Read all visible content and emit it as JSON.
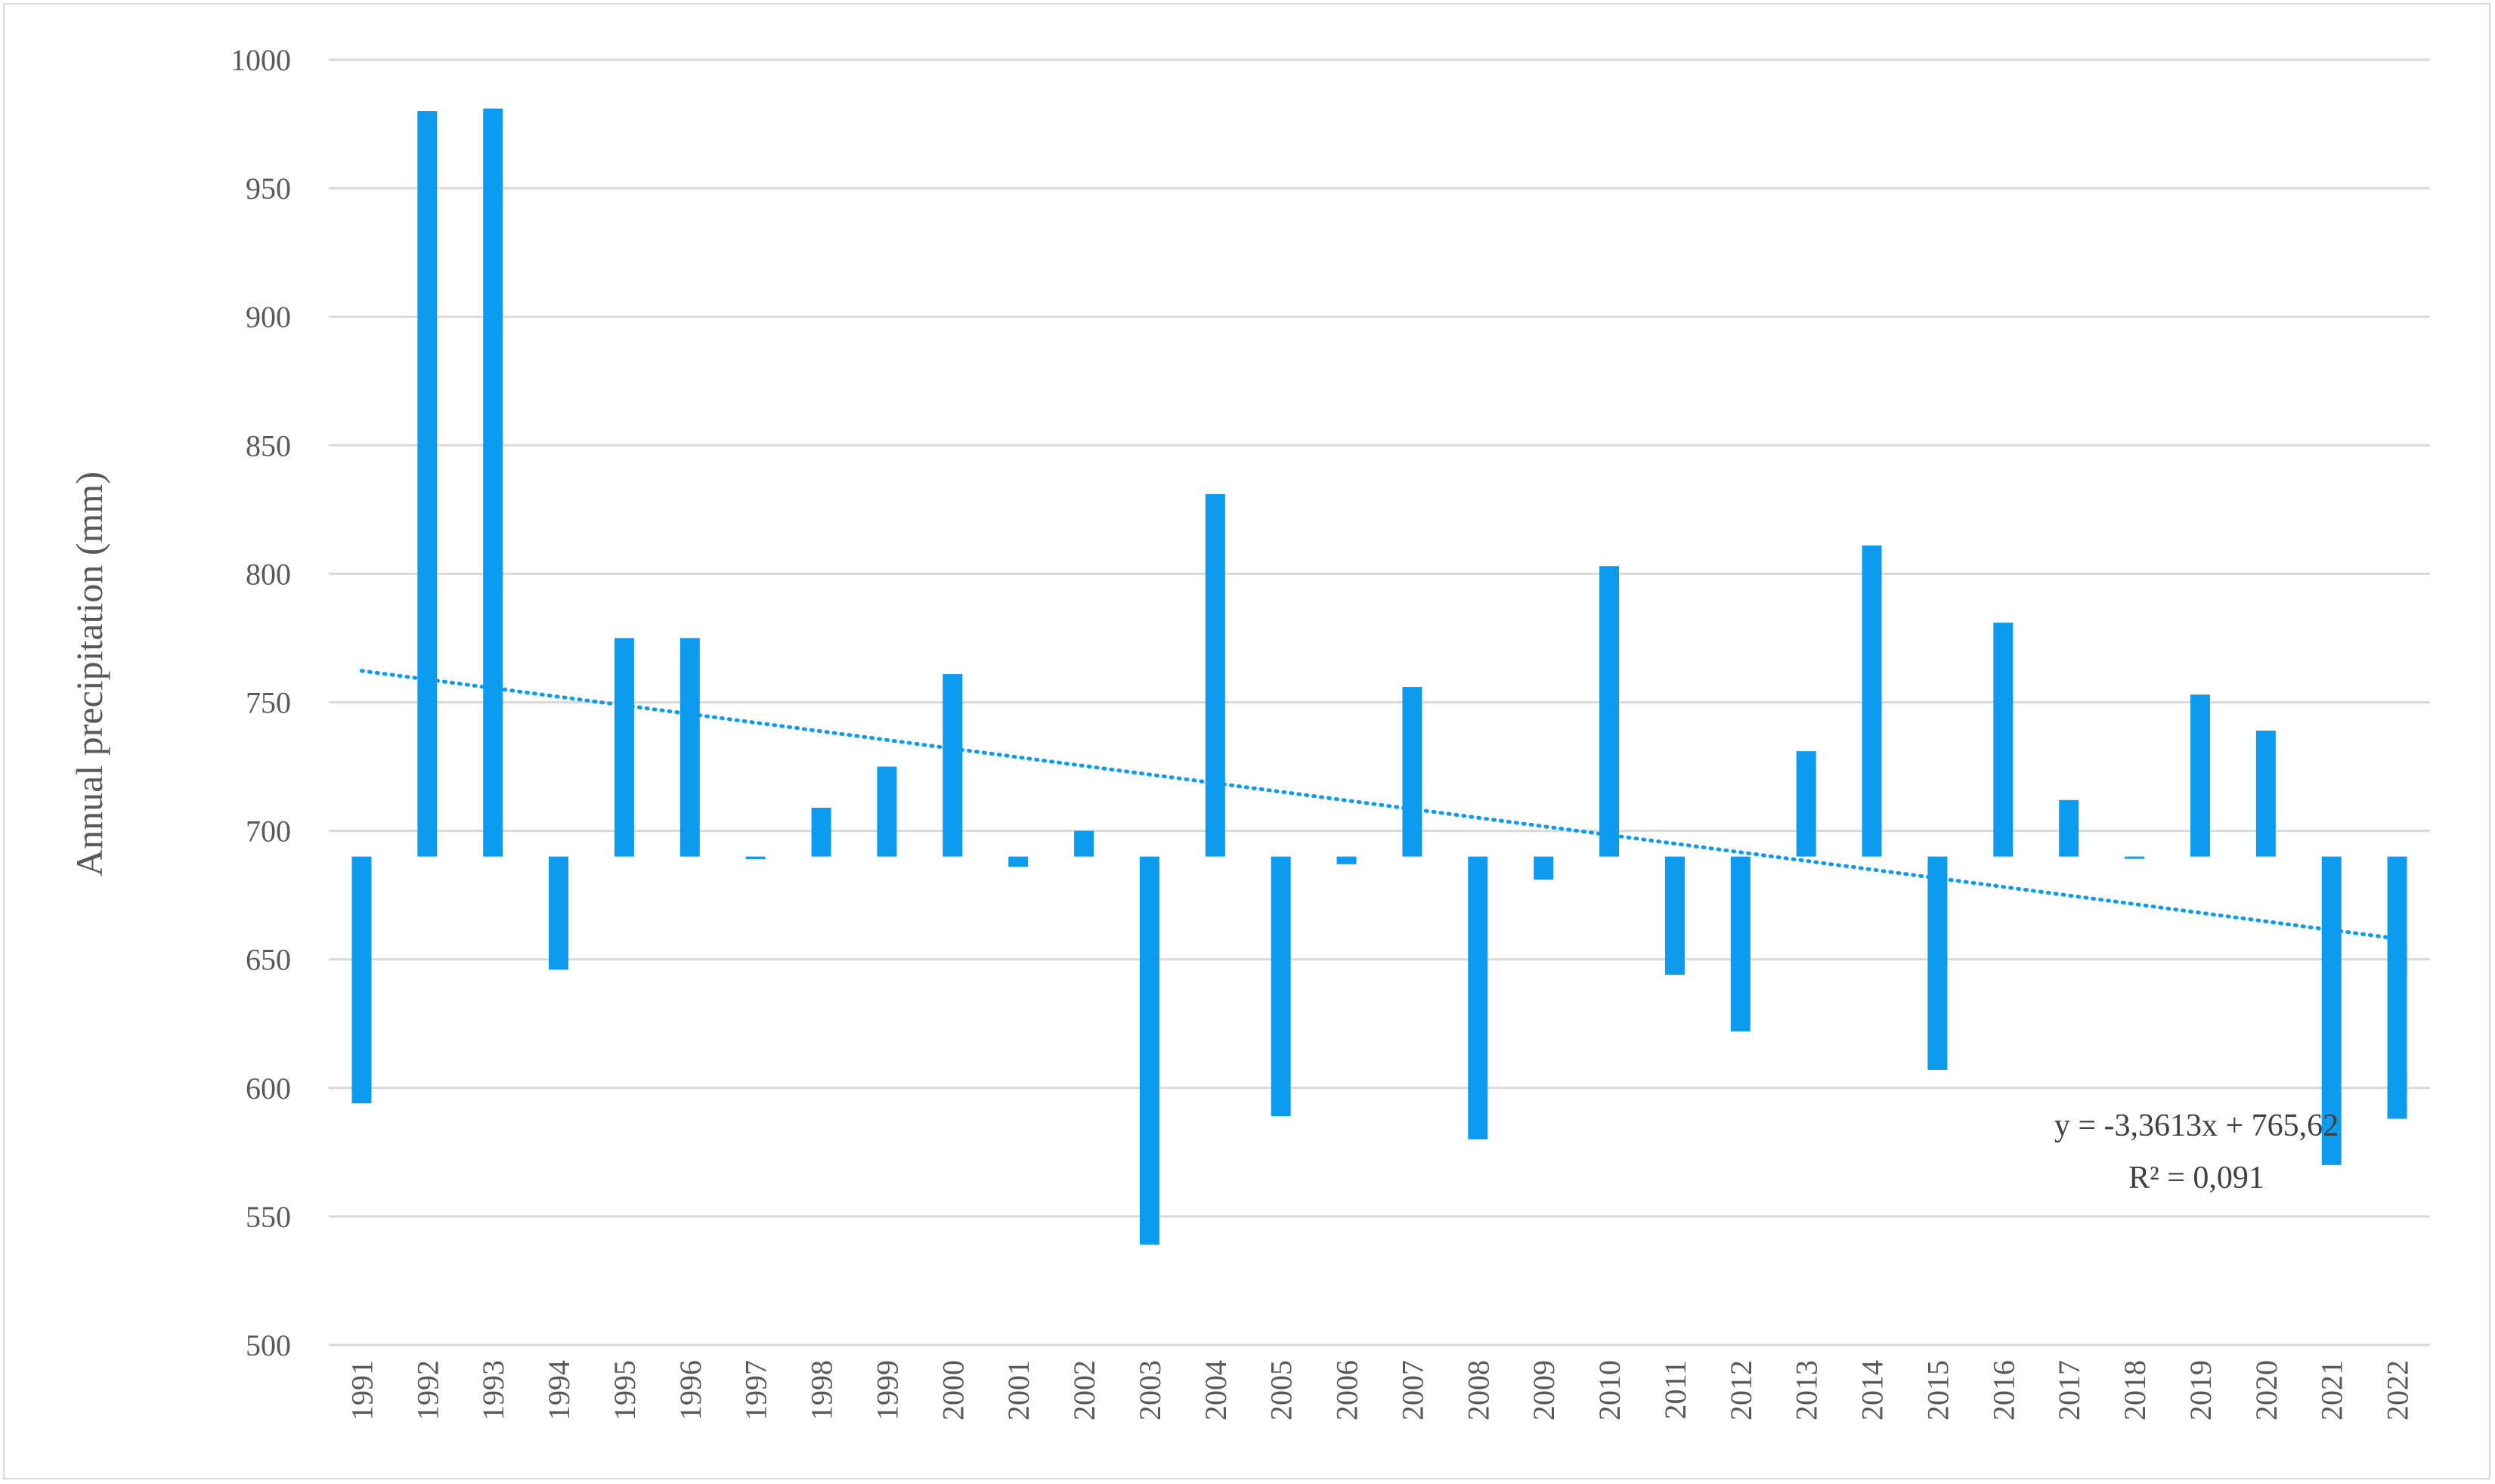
{
  "chart_data": {
    "type": "bar",
    "ylabel": "Annual precipitation (mm)",
    "xlabel": "",
    "title": "",
    "ylim": [
      500,
      1000
    ],
    "ytick_step": 50,
    "baseline": 690,
    "grid": true,
    "legend": "none",
    "bar_color": "#0D9BEF",
    "gridline_color": "#D9D9D9",
    "trendline_color": "#0D9BEF",
    "categories": [
      "1991",
      "1992",
      "1993",
      "1994",
      "1995",
      "1996",
      "1997",
      "1998",
      "1999",
      "2000",
      "2001",
      "2002",
      "2003",
      "2004",
      "2005",
      "2006",
      "2007",
      "2008",
      "2009",
      "2010",
      "2011",
      "2012",
      "2013",
      "2014",
      "2015",
      "2016",
      "2017",
      "2018",
      "2019",
      "2020",
      "2021",
      "2022"
    ],
    "values": [
      594,
      980,
      981,
      646,
      775,
      775,
      689,
      709,
      725,
      761,
      686,
      700,
      539,
      831,
      589,
      687,
      756,
      580,
      681,
      803,
      644,
      622,
      731,
      811,
      607,
      781,
      712,
      690,
      753,
      739,
      570,
      588
    ],
    "trendline": {
      "type": "linear",
      "slope": -3.3613,
      "intercept": 765.62,
      "equation": "y = -3,3613x + 765,62",
      "r_squared": "R² = 0,091"
    }
  }
}
